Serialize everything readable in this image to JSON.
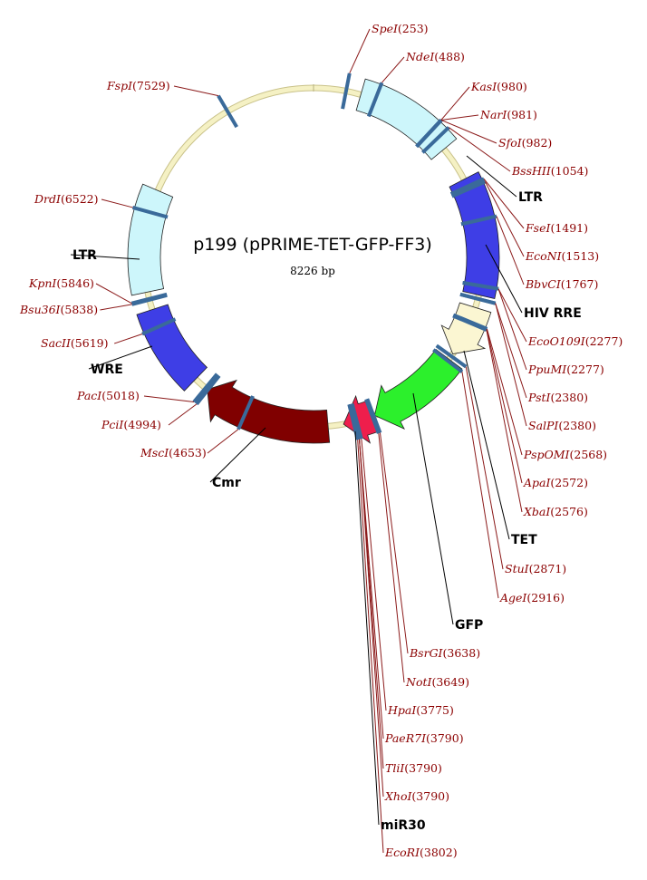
{
  "plasmid": {
    "name": "p199 (pPRIME-TET-GFP-FF3)",
    "size_label": "8226 bp",
    "length": 8226
  },
  "colors": {
    "backbone": "#f5f1c4",
    "ltr": "#cdf6fb",
    "hiv_rre": "#3e3ee6",
    "tet": "#fbf6d2",
    "gfp": "#2cf02c",
    "mir30": "#ee1e4c",
    "cmr": "#800000",
    "wre": "#3e3ee6",
    "site_text": "#8b0000",
    "tick": "#3a6a9a"
  },
  "features": [
    {
      "id": "ltr-right",
      "label": "LTR",
      "start": 370,
      "end": 1150,
      "color": "#cdf6fb",
      "arrow": false
    },
    {
      "id": "hiv-rre",
      "label": "HIV RRE",
      "start": 1430,
      "end": 2350,
      "color": "#3e3ee6",
      "arrow": false
    },
    {
      "id": "tet",
      "label": "TET",
      "start": 2450,
      "end": 2850,
      "color": "#fbf6d2",
      "arrow": true
    },
    {
      "id": "gfp",
      "label": "GFP",
      "start": 2900,
      "end": 3630,
      "color": "#2cf02c",
      "arrow": true
    },
    {
      "id": "mir30",
      "label": "miR30",
      "start": 3650,
      "end": 3880,
      "color": "#ee1e4c",
      "arrow": true
    },
    {
      "id": "cmr",
      "label": "Cmr",
      "start": 4000,
      "end": 5000,
      "color": "#800000",
      "arrow": true
    },
    {
      "id": "wre",
      "label": "WRE",
      "start": 5120,
      "end": 5760,
      "color": "#3e3ee6",
      "arrow": false
    },
    {
      "id": "ltr-left",
      "label": "LTR",
      "start": 5900,
      "end": 6700,
      "color": "#cdf6fb",
      "arrow": false
    }
  ],
  "sites": [
    {
      "name": "SpeI",
      "pos": 253,
      "label": "(253)"
    },
    {
      "name": "NdeI",
      "pos": 488,
      "label": "(488)"
    },
    {
      "name": "KasI",
      "pos": 980,
      "label": "(980)"
    },
    {
      "name": "NarI",
      "pos": 981,
      "label": "(981)"
    },
    {
      "name": "SfoI",
      "pos": 982,
      "label": "(982)"
    },
    {
      "name": "BssHII",
      "pos": 1054,
      "label": "(1054)"
    },
    {
      "name": "FseI",
      "pos": 1491,
      "label": "(1491)"
    },
    {
      "name": "EcoNI",
      "pos": 1513,
      "label": "(1513)"
    },
    {
      "name": "BbvCI",
      "pos": 1767,
      "label": "(1767)"
    },
    {
      "name": "EcoO109I",
      "pos": 2277,
      "label": "(2277)"
    },
    {
      "name": "PpuMI",
      "pos": 2277,
      "label": "(2277)"
    },
    {
      "name": "PstI",
      "pos": 2380,
      "label": "(2380)"
    },
    {
      "name": "SalPI",
      "pos": 2380,
      "label": "(2380)"
    },
    {
      "name": "PspOMI",
      "pos": 2568,
      "label": "(2568)"
    },
    {
      "name": "ApaI",
      "pos": 2572,
      "label": "(2572)"
    },
    {
      "name": "XbaI",
      "pos": 2576,
      "label": "(2576)"
    },
    {
      "name": "StuI",
      "pos": 2871,
      "label": "(2871)"
    },
    {
      "name": "AgeI",
      "pos": 2916,
      "label": "(2916)"
    },
    {
      "name": "BsrGI",
      "pos": 3638,
      "label": "(3638)"
    },
    {
      "name": "NotI",
      "pos": 3649,
      "label": "(3649)"
    },
    {
      "name": "HpaI",
      "pos": 3775,
      "label": "(3775)"
    },
    {
      "name": "PaeR7I",
      "pos": 3790,
      "label": "(3790)"
    },
    {
      "name": "TliI",
      "pos": 3790,
      "label": "(3790)"
    },
    {
      "name": "XhoI",
      "pos": 3790,
      "label": "(3790)"
    },
    {
      "name": "EcoRI",
      "pos": 3802,
      "label": "(3802)"
    },
    {
      "name": "MscI",
      "pos": 4653,
      "label": "(4653)"
    },
    {
      "name": "PciI",
      "pos": 4994,
      "label": "(4994)"
    },
    {
      "name": "PacI",
      "pos": 5018,
      "label": "(5018)"
    },
    {
      "name": "SacII",
      "pos": 5619,
      "label": "(5619)"
    },
    {
      "name": "Bsu36I",
      "pos": 5838,
      "label": "(5838)"
    },
    {
      "name": "KpnI",
      "pos": 5846,
      "label": "(5846)"
    },
    {
      "name": "DrdI",
      "pos": 6522,
      "label": "(6522)"
    },
    {
      "name": "FspI",
      "pos": 7529,
      "label": "(7529)"
    }
  ]
}
